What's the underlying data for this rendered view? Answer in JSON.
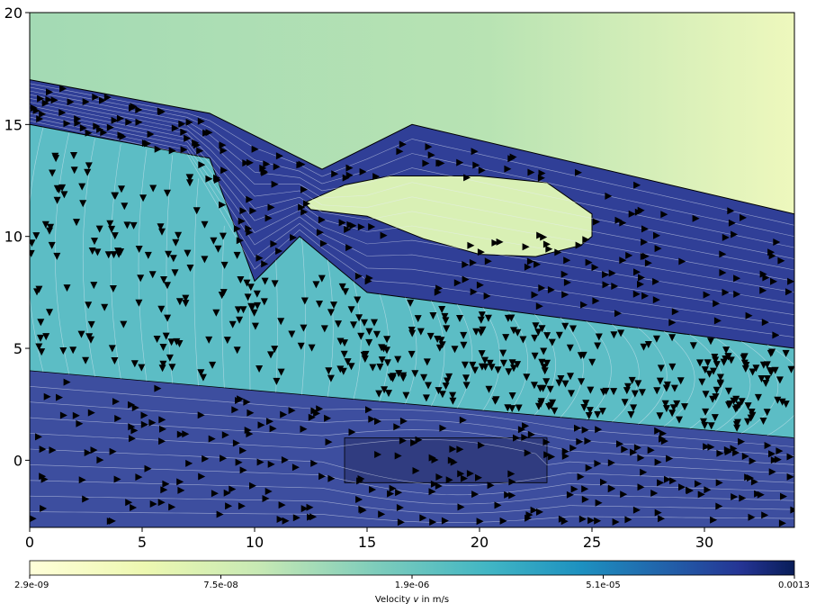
{
  "chart_data": {
    "type": "heatmap",
    "title": "",
    "xlabel": "",
    "ylabel": "",
    "xlim": [
      0,
      34
    ],
    "ylim": [
      -3,
      20
    ],
    "x_ticks": [
      "0",
      "5",
      "10",
      "15",
      "20",
      "25",
      "30"
    ],
    "x_tick_values": [
      0,
      5,
      10,
      15,
      20,
      25,
      30
    ],
    "y_ticks": [
      "0",
      "5",
      "10",
      "15",
      "20"
    ],
    "y_tick_values": [
      0,
      5,
      10,
      15,
      20
    ],
    "grid": false,
    "regions": [
      {
        "name": "ground",
        "color": "#a4dbb6"
      },
      {
        "name": "upper aquifer",
        "color": "#303f97",
        "boundary": [
          [
            0,
            17.0
          ],
          [
            8,
            15.5
          ],
          [
            13,
            13.0
          ],
          [
            17,
            15.0
          ],
          [
            34,
            11.0
          ],
          [
            34,
            5.0
          ],
          [
            15,
            7.5
          ],
          [
            12,
            10.0
          ],
          [
            10,
            8.0
          ],
          [
            8,
            13.5
          ],
          [
            0,
            15.0
          ]
        ]
      },
      {
        "name": "lens",
        "color": "#d9f0b5",
        "boundary": [
          [
            12.2,
            11.5
          ],
          [
            14,
            12.3
          ],
          [
            16,
            12.7
          ],
          [
            20,
            12.7
          ],
          [
            23,
            12.4
          ],
          [
            25,
            11.0
          ],
          [
            25,
            10.0
          ],
          [
            24.5,
            9.6
          ],
          [
            22.5,
            9.1
          ],
          [
            20,
            9.2
          ],
          [
            17.5,
            9.9
          ],
          [
            15,
            10.9
          ],
          [
            12.5,
            11.2
          ]
        ]
      },
      {
        "name": "aquitard",
        "color": "#5cbdc5"
      },
      {
        "name": "lower aquifer",
        "color": "#3d4e9f",
        "boundary": [
          [
            0,
            4.0
          ],
          [
            34,
            1.0
          ],
          [
            34,
            -3.0
          ],
          [
            0,
            -3.0
          ]
        ]
      },
      {
        "name": "well",
        "color": "#2e3a7a",
        "boundary": [
          [
            14,
            -1
          ],
          [
            23,
            -1
          ],
          [
            23,
            1
          ],
          [
            14,
            1
          ]
        ]
      }
    ],
    "colorbar": {
      "label": "Velocity $v$ in m/s",
      "ticks": [
        "2.9e-09",
        "7.5e-08",
        "1.9e-06",
        "5.1e-05",
        "0.0013"
      ],
      "scale": "log",
      "colormap": "YlGnBu",
      "colors": [
        "#ffffd9",
        "#c7e9b4",
        "#41b6c4",
        "#225ea8",
        "#081d58"
      ]
    }
  }
}
